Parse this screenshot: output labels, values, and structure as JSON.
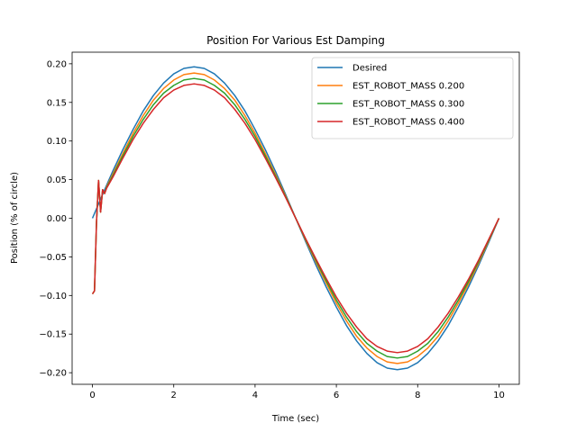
{
  "chart_data": {
    "type": "line",
    "title": "Position For Various Est Damping",
    "xlabel": "Time (sec)",
    "ylabel": "Position (% of circle)",
    "xlim": [
      -0.5,
      10.5
    ],
    "ylim": [
      -0.215,
      0.215
    ],
    "xticks": [
      0,
      2,
      4,
      6,
      8,
      10
    ],
    "xtick_labels": [
      "0",
      "2",
      "4",
      "6",
      "8",
      "10"
    ],
    "yticks": [
      -0.2,
      -0.15,
      -0.1,
      -0.05,
      0.0,
      0.05,
      0.1,
      0.15,
      0.2
    ],
    "ytick_labels": [
      "−0.20",
      "−0.15",
      "−0.10",
      "−0.05",
      "0.00",
      "0.05",
      "0.10",
      "0.15",
      "0.20"
    ],
    "grid": false,
    "legend": "upper-right",
    "series": [
      {
        "name": "Desired",
        "color": "#1f77b4",
        "x": [
          0,
          0.25,
          0.5,
          0.75,
          1,
          1.25,
          1.5,
          1.75,
          2,
          2.25,
          2.5,
          2.75,
          3,
          3.25,
          3.5,
          3.75,
          4,
          4.25,
          4.5,
          4.75,
          5,
          5.25,
          5.5,
          5.75,
          6,
          6.25,
          6.5,
          6.75,
          7,
          7.25,
          7.5,
          7.75,
          8,
          8.25,
          8.5,
          8.75,
          9,
          9.25,
          9.5,
          9.75,
          10
        ],
        "y": [
          0,
          0.031,
          0.061,
          0.089,
          0.115,
          0.139,
          0.159,
          0.175,
          0.187,
          0.194,
          0.196,
          0.194,
          0.187,
          0.175,
          0.159,
          0.139,
          0.115,
          0.089,
          0.061,
          0.031,
          0,
          -0.031,
          -0.061,
          -0.089,
          -0.115,
          -0.139,
          -0.159,
          -0.175,
          -0.187,
          -0.194,
          -0.196,
          -0.194,
          -0.187,
          -0.175,
          -0.159,
          -0.139,
          -0.115,
          -0.089,
          -0.061,
          -0.031,
          0
        ]
      },
      {
        "name": "EST_ROBOT_MASS 0.200",
        "color": "#ff7f0e",
        "x": [
          0,
          0.05,
          0.1,
          0.15,
          0.2,
          0.25,
          0.3,
          0.35,
          0.5,
          0.75,
          1,
          1.25,
          1.5,
          1.75,
          2,
          2.25,
          2.5,
          2.75,
          3,
          3.25,
          3.5,
          3.75,
          4,
          4.25,
          4.5,
          4.75,
          5,
          5.25,
          5.5,
          5.75,
          6,
          6.25,
          6.5,
          6.75,
          7,
          7.25,
          7.5,
          7.75,
          8,
          8.25,
          8.5,
          8.75,
          9,
          9.25,
          9.5,
          9.75,
          10
        ],
        "y": [
          -0.098,
          -0.094,
          -0.005,
          0.049,
          0.008,
          0.037,
          0.032,
          0.041,
          0.057,
          0.084,
          0.11,
          0.133,
          0.153,
          0.168,
          0.179,
          0.186,
          0.188,
          0.186,
          0.179,
          0.168,
          0.153,
          0.133,
          0.11,
          0.084,
          0.057,
          0.029,
          0,
          -0.029,
          -0.057,
          -0.084,
          -0.11,
          -0.133,
          -0.153,
          -0.168,
          -0.179,
          -0.186,
          -0.188,
          -0.186,
          -0.179,
          -0.168,
          -0.153,
          -0.133,
          -0.11,
          -0.085,
          -0.058,
          -0.029,
          0
        ]
      },
      {
        "name": "EST_ROBOT_MASS 0.300",
        "color": "#2ca02c",
        "x": [
          0,
          0.05,
          0.1,
          0.15,
          0.2,
          0.25,
          0.3,
          0.35,
          0.5,
          0.75,
          1,
          1.25,
          1.5,
          1.75,
          2,
          2.25,
          2.5,
          2.75,
          3,
          3.25,
          3.5,
          3.75,
          4,
          4.25,
          4.5,
          4.75,
          5,
          5.25,
          5.5,
          5.75,
          6,
          6.25,
          6.5,
          6.75,
          7,
          7.25,
          7.5,
          7.75,
          8,
          8.25,
          8.5,
          8.75,
          9,
          9.25,
          9.5,
          9.75,
          10
        ],
        "y": [
          -0.098,
          -0.094,
          -0.005,
          0.049,
          0.008,
          0.037,
          0.032,
          0.04,
          0.055,
          0.081,
          0.106,
          0.128,
          0.147,
          0.162,
          0.172,
          0.179,
          0.181,
          0.179,
          0.172,
          0.162,
          0.147,
          0.128,
          0.106,
          0.081,
          0.055,
          0.028,
          0,
          -0.028,
          -0.055,
          -0.081,
          -0.106,
          -0.128,
          -0.147,
          -0.162,
          -0.172,
          -0.179,
          -0.181,
          -0.179,
          -0.172,
          -0.162,
          -0.147,
          -0.128,
          -0.106,
          -0.082,
          -0.056,
          -0.028,
          0
        ]
      },
      {
        "name": "EST_ROBOT_MASS 0.400",
        "color": "#d62728",
        "x": [
          0,
          0.05,
          0.1,
          0.15,
          0.2,
          0.25,
          0.3,
          0.35,
          0.5,
          0.75,
          1,
          1.25,
          1.5,
          1.75,
          2,
          2.25,
          2.5,
          2.75,
          3,
          3.25,
          3.5,
          3.75,
          4,
          4.25,
          4.5,
          4.75,
          5,
          5.25,
          5.5,
          5.75,
          6,
          6.25,
          6.5,
          6.75,
          7,
          7.25,
          7.5,
          7.75,
          8,
          8.25,
          8.5,
          8.75,
          9,
          9.25,
          9.5,
          9.75,
          10
        ],
        "y": [
          -0.098,
          -0.094,
          -0.005,
          0.049,
          0.008,
          0.037,
          0.032,
          0.039,
          0.053,
          0.078,
          0.102,
          0.123,
          0.141,
          0.156,
          0.166,
          0.172,
          0.174,
          0.172,
          0.166,
          0.156,
          0.141,
          0.123,
          0.102,
          0.078,
          0.053,
          0.027,
          0,
          -0.027,
          -0.053,
          -0.078,
          -0.102,
          -0.123,
          -0.141,
          -0.156,
          -0.166,
          -0.172,
          -0.174,
          -0.172,
          -0.166,
          -0.156,
          -0.141,
          -0.123,
          -0.102,
          -0.079,
          -0.054,
          -0.027,
          0
        ]
      }
    ]
  }
}
